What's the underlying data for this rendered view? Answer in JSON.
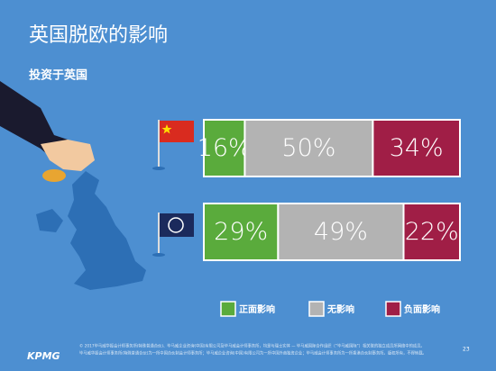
{
  "chart_data": {
    "type": "stacked-hbar",
    "title": "英国脱欧的影响",
    "subtitle": "投资于英国",
    "categories": [
      null,
      null
    ],
    "series": [
      {
        "name": "正面影响",
        "color": "#5aab3c",
        "values": [
          16,
          29
        ],
        "value_labels": [
          "16%",
          "29%"
        ]
      },
      {
        "name": "无影响",
        "color": "#b3b3b3",
        "values": [
          50,
          49
        ],
        "value_labels": [
          "50%",
          "49%"
        ]
      },
      {
        "name": "负面影响",
        "color": "#a01e46",
        "values": [
          34,
          22
        ],
        "value_labels": [
          "34%",
          "22%"
        ]
      }
    ],
    "footnote": [
      "© 2017毕马威华振会计师事务所(特殊普通合伙)、毕马威企业咨询(中国)有限公司及毕马威会计师事务所，均是与瑞士实体 — 毕马威国际合作组织（“毕马威国际”）相关联的独立成员所网络中的成员。",
      "毕马威华振会计师事务所(特殊普通合伙)为一所中国合伙制会计师事务所；毕马威企业咨询(中国)有限公司为一所中国外商独资企业；毕马威会计师事务所为一所香港合伙制事务所。版权所有，不得转载。"
    ],
    "logo": "KPMG",
    "page_number": "23"
  }
}
